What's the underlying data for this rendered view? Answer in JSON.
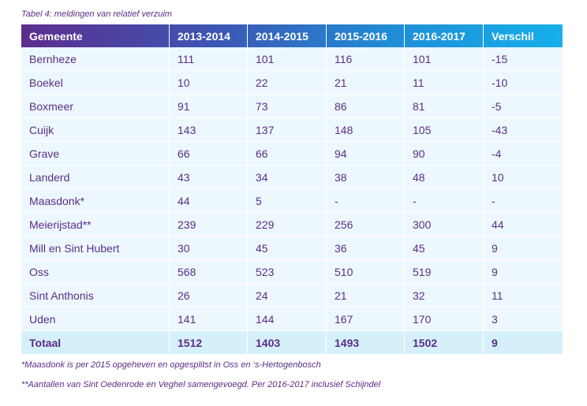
{
  "caption": "Tabel 4: meldingen van relatief verzuim",
  "table": {
    "headers": [
      "Gemeente",
      "2013-2014",
      "2014-2015",
      "2015-2016",
      "2016-2017",
      "Verschil"
    ],
    "rows": [
      [
        "Bernheze",
        "111",
        "101",
        "116",
        "101",
        "-15"
      ],
      [
        "Boekel",
        "10",
        "22",
        "21",
        "11",
        "-10"
      ],
      [
        "Boxmeer",
        "91",
        "73",
        "86",
        "81",
        "-5"
      ],
      [
        "Cuijk",
        "143",
        "137",
        "148",
        "105",
        "-43"
      ],
      [
        "Grave",
        "66",
        "66",
        "94",
        "90",
        "-4"
      ],
      [
        "Landerd",
        "43",
        "34",
        "38",
        "48",
        "10"
      ],
      [
        "Maasdonk*",
        "44",
        "5",
        "-",
        "-",
        "-"
      ],
      [
        "Meierijstad**",
        "239",
        "229",
        "256",
        "300",
        "44"
      ],
      [
        "Mill en Sint Hubert",
        "30",
        "45",
        "36",
        "45",
        "9"
      ],
      [
        "Oss",
        "568",
        "523",
        "510",
        "519",
        "9"
      ],
      [
        "Sint Anthonis",
        "26",
        "24",
        "21",
        "32",
        "11"
      ],
      [
        "Uden",
        "141",
        "144",
        "167",
        "170",
        "3"
      ]
    ],
    "total": [
      "Totaal",
      "1512",
      "1403",
      "1493",
      "1502",
      "9"
    ]
  },
  "footnotes": [
    "*Maasdonk is per 2015 opgeheven en opgesplitst in Oss en ‘s-Hertogenbosch",
    "**Aantallen van Sint Oedenrode en Veghel samengevoegd. Per 2016-2017 inclusief Schijndel"
  ],
  "colors": {
    "text": "#5b2d86",
    "header_gradient_start": "#5c2e8e",
    "header_gradient_end": "#16b0ea",
    "row_background": "#ecf8fd",
    "total_background": "#d6f0fb"
  }
}
